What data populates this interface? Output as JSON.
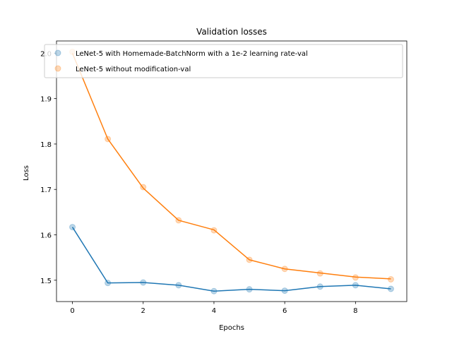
{
  "chart_data": {
    "type": "line",
    "title": "Validation losses",
    "xlabel": "Epochs",
    "ylabel": "Loss",
    "x": [
      0,
      1,
      2,
      3,
      4,
      5,
      6,
      7,
      8,
      9
    ],
    "xlim": [
      -0.45,
      9.45
    ],
    "ylim": [
      1.453,
      2.027
    ],
    "xticks": [
      0,
      2,
      4,
      6,
      8
    ],
    "yticks": [
      1.5,
      1.6,
      1.7,
      1.8,
      1.9,
      2.0
    ],
    "xtick_labels": [
      "0",
      "2",
      "4",
      "6",
      "8"
    ],
    "ytick_labels": [
      "1.5",
      "1.6",
      "1.7",
      "1.8",
      "1.9",
      "2.0"
    ],
    "legend_position": "top-right",
    "grid": false,
    "series": [
      {
        "name": "LeNet-5 with Homemade-BatchNorm with a 1e-2 learning rate-val",
        "color": "#1f77b4",
        "values": [
          1.617,
          1.494,
          1.495,
          1.489,
          1.476,
          1.48,
          1.477,
          1.486,
          1.489,
          1.481
        ],
        "markers": [
          1.617,
          1.494,
          1.495,
          1.489,
          1.476,
          1.48,
          1.477,
          1.486,
          1.489,
          1.481
        ]
      },
      {
        "name": "LeNet-5 without modification-val",
        "color": "#ff7f0e",
        "values": [
          2.0,
          1.811,
          1.703,
          1.632,
          1.611,
          1.545,
          1.525,
          1.516,
          1.507,
          1.503
        ],
        "markers": [
          2.003,
          1.811,
          1.705,
          1.632,
          1.61,
          1.545,
          1.525,
          1.515,
          1.506,
          1.502
        ]
      }
    ]
  }
}
